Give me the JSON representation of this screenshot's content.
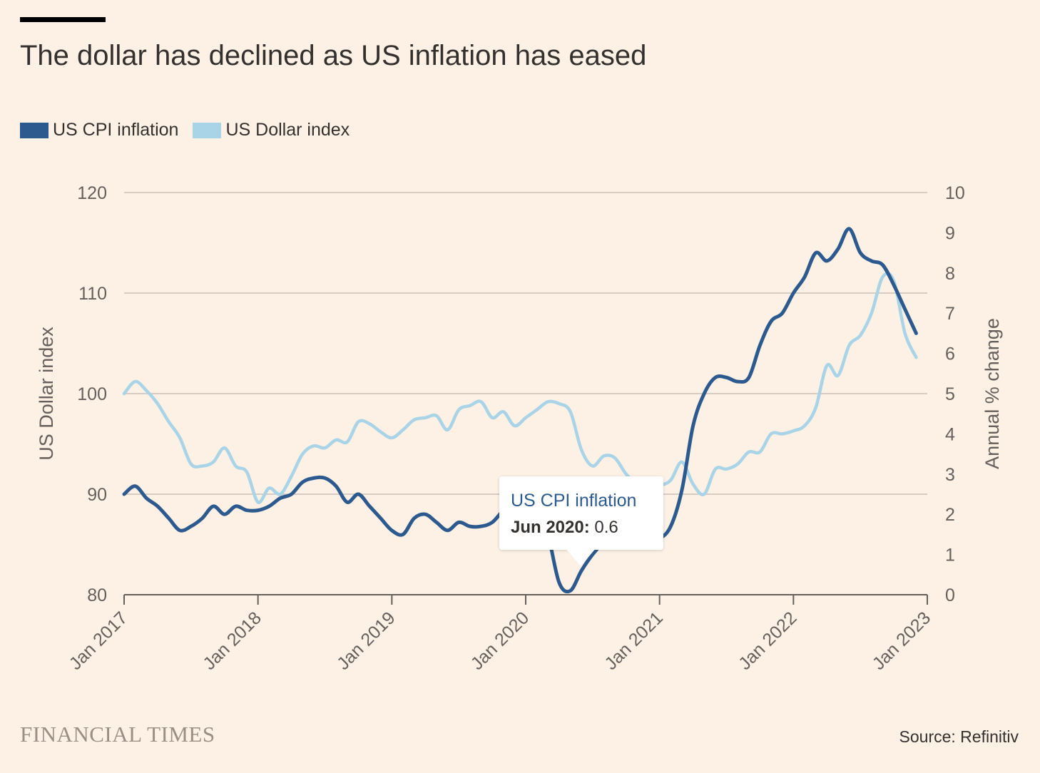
{
  "header": {
    "title": "The dollar has declined as US inflation has eased"
  },
  "legend": [
    {
      "label": "US CPI inflation",
      "color": "#2d5a8e"
    },
    {
      "label": "US Dollar index",
      "color": "#a9d3e6"
    }
  ],
  "footer": {
    "brand": "FINANCIAL TIMES",
    "source": "Source: Refinitiv"
  },
  "tooltip": {
    "series": "US CPI inflation",
    "date": "Jun 2020:",
    "value": "0.6"
  },
  "chart_data": {
    "type": "line",
    "xlabel": "",
    "ylabel_left": "US Dollar index",
    "ylabel_right": "Annual % change",
    "xlim": [
      "2017-01",
      "2023-01"
    ],
    "ylim_left": [
      80,
      120
    ],
    "ylim_right": [
      0,
      10
    ],
    "x_ticks": [
      "Jan 2017",
      "Jan 2018",
      "Jan 2019",
      "Jan 2020",
      "Jan 2021",
      "Jan 2022",
      "Jan 2023"
    ],
    "y_ticks_left": [
      "80",
      "90",
      "100",
      "110",
      "120"
    ],
    "y_ticks_right": [
      "0",
      "1",
      "2",
      "3",
      "4",
      "5",
      "6",
      "7",
      "8",
      "9",
      "10"
    ],
    "grid": true,
    "legend_position": "top-left",
    "series": [
      {
        "name": "US CPI inflation",
        "axis": "right",
        "color": "#2d5a8e",
        "x": [
          "2017-01",
          "2017-02",
          "2017-03",
          "2017-04",
          "2017-05",
          "2017-06",
          "2017-07",
          "2017-08",
          "2017-09",
          "2017-10",
          "2017-11",
          "2017-12",
          "2018-01",
          "2018-02",
          "2018-03",
          "2018-04",
          "2018-05",
          "2018-06",
          "2018-07",
          "2018-08",
          "2018-09",
          "2018-10",
          "2018-11",
          "2018-12",
          "2019-01",
          "2019-02",
          "2019-03",
          "2019-04",
          "2019-05",
          "2019-06",
          "2019-07",
          "2019-08",
          "2019-09",
          "2019-10",
          "2019-11",
          "2019-12",
          "2020-01",
          "2020-02",
          "2020-03",
          "2020-04",
          "2020-05",
          "2020-06",
          "2020-07",
          "2020-08",
          "2020-09",
          "2020-10",
          "2020-11",
          "2020-12",
          "2021-01",
          "2021-02",
          "2021-03",
          "2021-04",
          "2021-05",
          "2021-06",
          "2021-07",
          "2021-08",
          "2021-09",
          "2021-10",
          "2021-11",
          "2021-12",
          "2022-01",
          "2022-02",
          "2022-03",
          "2022-04",
          "2022-05",
          "2022-06",
          "2022-07",
          "2022-08",
          "2022-09",
          "2022-10",
          "2022-11",
          "2022-12"
        ],
        "values": [
          2.5,
          2.7,
          2.4,
          2.2,
          1.9,
          1.6,
          1.7,
          1.9,
          2.2,
          2.0,
          2.2,
          2.1,
          2.1,
          2.2,
          2.4,
          2.5,
          2.8,
          2.9,
          2.9,
          2.7,
          2.3,
          2.5,
          2.2,
          1.9,
          1.6,
          1.5,
          1.9,
          2.0,
          1.8,
          1.6,
          1.8,
          1.7,
          1.7,
          1.8,
          2.1,
          2.3,
          2.5,
          2.3,
          1.5,
          0.3,
          0.1,
          0.6,
          1.0,
          1.3,
          1.4,
          1.2,
          1.2,
          1.4,
          1.4,
          1.7,
          2.6,
          4.2,
          5.0,
          5.4,
          5.4,
          5.3,
          5.4,
          6.2,
          6.8,
          7.0,
          7.5,
          7.9,
          8.5,
          8.3,
          8.6,
          9.1,
          8.5,
          8.3,
          8.2,
          7.7,
          7.1,
          6.5
        ]
      },
      {
        "name": "US Dollar index",
        "axis": "left",
        "color": "#a9d3e6",
        "x": [
          "2017-01",
          "2017-02",
          "2017-03",
          "2017-04",
          "2017-05",
          "2017-06",
          "2017-07",
          "2017-08",
          "2017-09",
          "2017-10",
          "2017-11",
          "2017-12",
          "2018-01",
          "2018-02",
          "2018-03",
          "2018-04",
          "2018-05",
          "2018-06",
          "2018-07",
          "2018-08",
          "2018-09",
          "2018-10",
          "2018-11",
          "2018-12",
          "2019-01",
          "2019-02",
          "2019-03",
          "2019-04",
          "2019-05",
          "2019-06",
          "2019-07",
          "2019-08",
          "2019-09",
          "2019-10",
          "2019-11",
          "2019-12",
          "2020-01",
          "2020-02",
          "2020-03",
          "2020-04",
          "2020-05",
          "2020-06",
          "2020-07",
          "2020-08",
          "2020-09",
          "2020-10",
          "2020-11",
          "2020-12",
          "2021-01",
          "2021-02",
          "2021-03",
          "2021-04",
          "2021-05",
          "2021-06",
          "2021-07",
          "2021-08",
          "2021-09",
          "2021-10",
          "2021-11",
          "2021-12",
          "2022-01",
          "2022-02",
          "2022-03",
          "2022-04",
          "2022-05",
          "2022-06",
          "2022-07",
          "2022-08",
          "2022-09",
          "2022-10",
          "2022-11",
          "2022-12"
        ],
        "values": [
          100.0,
          101.2,
          100.3,
          99.0,
          97.2,
          95.6,
          93.0,
          92.8,
          93.2,
          94.6,
          92.8,
          92.2,
          89.2,
          90.6,
          90.0,
          91.8,
          94.0,
          94.8,
          94.6,
          95.4,
          95.2,
          97.2,
          97.0,
          96.2,
          95.6,
          96.4,
          97.4,
          97.6,
          97.8,
          96.4,
          98.4,
          98.8,
          99.2,
          97.6,
          98.2,
          96.8,
          97.6,
          98.4,
          99.2,
          99.0,
          98.2,
          94.4,
          92.8,
          93.8,
          93.6,
          92.0,
          91.0,
          90.2,
          90.8,
          91.4,
          93.2,
          91.0,
          90.0,
          92.5,
          92.5,
          93.0,
          94.2,
          94.2,
          96.0,
          96.0,
          96.3,
          96.8,
          98.6,
          102.8,
          101.8,
          104.8,
          105.8,
          108.0,
          111.6,
          111.2,
          106.0,
          103.6
        ]
      }
    ]
  }
}
